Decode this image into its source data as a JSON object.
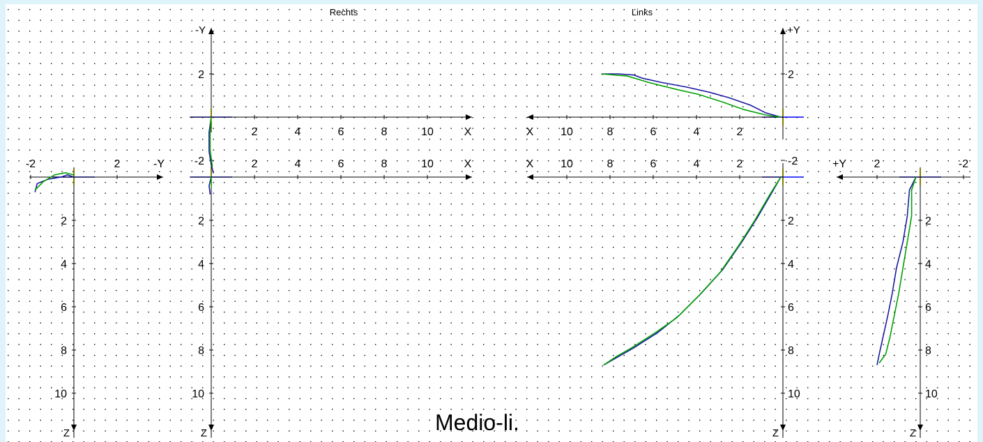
{
  "page": {
    "background": "#dff3fb",
    "plot_background": "#ffffff",
    "caption": "Medio-li."
  },
  "colors": {
    "axis": "#000000",
    "grid_dots": "#000000",
    "reference_blue": "#0000ff",
    "reference_yellow": "#ffff00",
    "series_blue": "#1a1aa0",
    "series_green": "#00a000"
  },
  "chart_data": [
    {
      "id": "right-top-view",
      "type": "line",
      "title": "Rechts",
      "xlabel": "X",
      "ylabel": "-Y",
      "xticks": [
        "2",
        "4",
        "6",
        "8",
        "10"
      ],
      "yticks": [
        "2",
        "-2"
      ],
      "grid": "dotted",
      "series": [
        {
          "color": "blue",
          "points": [
            [
              0,
              0
            ],
            [
              -0.1,
              0.7
            ],
            [
              -0.1,
              1.6
            ],
            [
              0,
              2.2
            ],
            [
              0.1,
              2.6
            ]
          ]
        },
        {
          "color": "green",
          "points": [
            [
              0,
              0
            ],
            [
              -0.05,
              0.6
            ],
            [
              -0.05,
              1.5
            ],
            [
              0.05,
              2.3
            ]
          ]
        }
      ]
    },
    {
      "id": "right-side-view",
      "type": "line",
      "xlabel": "X",
      "ylabel": "Z",
      "xticks": [
        "2",
        "4",
        "6",
        "8",
        "10"
      ],
      "yticks": [
        "2",
        "4",
        "6",
        "8",
        "10"
      ],
      "grid": "dotted",
      "series": [
        {
          "color": "blue",
          "points": [
            [
              0,
              0
            ],
            [
              -0.1,
              0.4
            ],
            [
              -0.05,
              0.8
            ]
          ]
        },
        {
          "color": "green",
          "points": [
            [
              0,
              0
            ],
            [
              0,
              0.5
            ]
          ]
        }
      ]
    },
    {
      "id": "right-front-view",
      "type": "line",
      "xlabel": "-Y",
      "ylabel": "Z",
      "xticks": [
        "-2",
        "2"
      ],
      "yticks": [
        "2",
        "4",
        "6",
        "8",
        "10"
      ],
      "grid": "dotted",
      "series": [
        {
          "color": "blue",
          "points": [
            [
              -1.8,
              0.7
            ],
            [
              -1.7,
              0.3
            ],
            [
              -1.2,
              0.1
            ],
            [
              -0.6,
              0.0
            ],
            [
              -0.3,
              -0.1
            ],
            [
              0,
              0
            ]
          ]
        },
        {
          "color": "green",
          "points": [
            [
              -1.8,
              0.6
            ],
            [
              -1.4,
              0.2
            ],
            [
              -0.9,
              -0.1
            ],
            [
              -0.4,
              -0.2
            ],
            [
              0,
              -0.1
            ]
          ]
        }
      ]
    },
    {
      "id": "left-top-view",
      "type": "line",
      "title": "Links",
      "xlabel": "X",
      "ylabel": "+Y",
      "xticks": [
        "10",
        "8",
        "6",
        "4",
        "2"
      ],
      "yticks": [
        "2",
        "-2"
      ],
      "grid": "dotted",
      "series": [
        {
          "color": "blue",
          "points": [
            [
              8.4,
              2.0
            ],
            [
              7.6,
              2.0
            ],
            [
              6.9,
              1.95
            ],
            [
              6.5,
              1.8
            ],
            [
              5.6,
              1.6
            ],
            [
              4.5,
              1.4
            ],
            [
              3.4,
              1.15
            ],
            [
              2.5,
              0.9
            ],
            [
              1.5,
              0.55
            ],
            [
              0.8,
              0.2
            ],
            [
              0.1,
              0.0
            ]
          ]
        },
        {
          "color": "green",
          "points": [
            [
              8.4,
              2.0
            ],
            [
              7.2,
              1.9
            ],
            [
              6.2,
              1.6
            ],
            [
              5.0,
              1.3
            ],
            [
              3.9,
              1.05
            ],
            [
              2.8,
              0.7
            ],
            [
              1.8,
              0.35
            ],
            [
              0.8,
              0.1
            ],
            [
              0.1,
              0.0
            ]
          ]
        }
      ]
    },
    {
      "id": "left-side-view",
      "type": "line",
      "xlabel": "X",
      "ylabel": "Z",
      "xticks": [
        "10",
        "8",
        "6",
        "4",
        "2"
      ],
      "yticks": [
        "2",
        "4",
        "6",
        "8",
        "10"
      ],
      "grid": "dotted",
      "series": [
        {
          "color": "blue",
          "points": [
            [
              0.1,
              0.0
            ],
            [
              0.5,
              0.7
            ],
            [
              1.2,
              1.9
            ],
            [
              1.9,
              3.0
            ],
            [
              2.8,
              4.3
            ],
            [
              3.8,
              5.4
            ],
            [
              4.8,
              6.4
            ],
            [
              5.8,
              7.2
            ],
            [
              6.9,
              7.9
            ],
            [
              7.6,
              8.3
            ],
            [
              8.3,
              8.7
            ]
          ]
        },
        {
          "color": "green",
          "points": [
            [
              0.1,
              0.0
            ],
            [
              0.6,
              0.8
            ],
            [
              1.3,
              2.0
            ],
            [
              2.0,
              3.1
            ],
            [
              2.9,
              4.4
            ],
            [
              3.9,
              5.5
            ],
            [
              4.9,
              6.5
            ],
            [
              5.9,
              7.2
            ],
            [
              7.0,
              7.9
            ],
            [
              7.7,
              8.3
            ],
            [
              8.3,
              8.7
            ]
          ]
        }
      ]
    },
    {
      "id": "left-front-view",
      "type": "line",
      "xlabel": "+Y",
      "ylabel": "Z",
      "xticks": [
        "2",
        "-2"
      ],
      "yticks": [
        "2",
        "4",
        "6",
        "8",
        "10"
      ],
      "grid": "dotted",
      "series": [
        {
          "color": "blue",
          "points": [
            [
              0.2,
              0.0
            ],
            [
              0.5,
              0.6
            ],
            [
              0.6,
              1.8
            ],
            [
              0.8,
              3.0
            ],
            [
              1.1,
              4.2
            ],
            [
              1.3,
              5.4
            ],
            [
              1.5,
              6.4
            ],
            [
              1.7,
              7.3
            ],
            [
              1.9,
              8.2
            ],
            [
              2.0,
              8.7
            ]
          ]
        },
        {
          "color": "green",
          "points": [
            [
              0.2,
              0.0
            ],
            [
              0.4,
              0.6
            ],
            [
              0.4,
              1.8
            ],
            [
              0.6,
              3.0
            ],
            [
              0.8,
              4.2
            ],
            [
              1.0,
              5.4
            ],
            [
              1.2,
              6.4
            ],
            [
              1.4,
              7.4
            ],
            [
              1.6,
              8.2
            ],
            [
              1.9,
              8.6
            ]
          ]
        }
      ]
    }
  ]
}
